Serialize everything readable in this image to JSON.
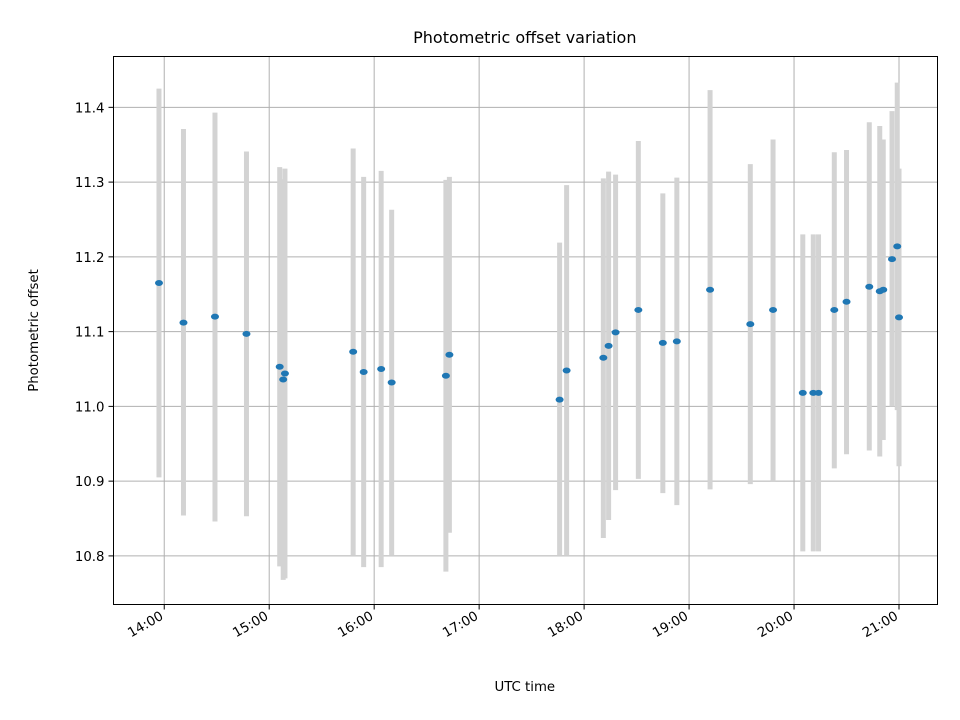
{
  "chart_data": {
    "type": "scatter",
    "title": "Photometric offset variation",
    "xlabel": "UTC time",
    "ylabel": "Photometric offset",
    "x_unit": "hours UTC",
    "xlim": [
      "13:31",
      "21:22"
    ],
    "ylim": [
      10.735,
      11.468
    ],
    "xticks": [
      "14:00",
      "15:00",
      "16:00",
      "17:00",
      "18:00",
      "19:00",
      "20:00",
      "21:00"
    ],
    "yticks": [
      "10.8",
      "10.9",
      "11.0",
      "11.1",
      "11.2",
      "11.3",
      "11.4"
    ],
    "grid": true,
    "colors": {
      "points": "#1f77b4",
      "errorbars": "#d3d3d3",
      "grid": "#b0b0b0"
    },
    "points": [
      {
        "x": "13:57",
        "y": 11.165,
        "ymin": 10.905,
        "ymax": 11.425
      },
      {
        "x": "14:11",
        "y": 11.112,
        "ymin": 10.854,
        "ymax": 11.371
      },
      {
        "x": "14:29",
        "y": 11.12,
        "ymin": 10.846,
        "ymax": 11.393
      },
      {
        "x": "14:47",
        "y": 11.097,
        "ymin": 10.853,
        "ymax": 11.341
      },
      {
        "x": "15:06",
        "y": 11.053,
        "ymin": 10.786,
        "ymax": 11.32
      },
      {
        "x": "15:08",
        "y": 11.036,
        "ymin": 10.768,
        "ymax": 11.304
      },
      {
        "x": "15:09",
        "y": 11.044,
        "ymin": 10.77,
        "ymax": 11.318
      },
      {
        "x": "15:48",
        "y": 11.073,
        "ymin": 10.8,
        "ymax": 11.345
      },
      {
        "x": "15:54",
        "y": 11.046,
        "ymin": 10.785,
        "ymax": 11.307
      },
      {
        "x": "16:04",
        "y": 11.05,
        "ymin": 10.785,
        "ymax": 11.315
      },
      {
        "x": "16:10",
        "y": 11.032,
        "ymin": 10.8,
        "ymax": 11.263
      },
      {
        "x": "16:41",
        "y": 11.041,
        "ymin": 10.779,
        "ymax": 11.303
      },
      {
        "x": "16:43",
        "y": 11.069,
        "ymin": 10.831,
        "ymax": 11.307
      },
      {
        "x": "17:46",
        "y": 11.009,
        "ymin": 10.8,
        "ymax": 11.219
      },
      {
        "x": "17:50",
        "y": 11.048,
        "ymin": 10.8,
        "ymax": 11.296
      },
      {
        "x": "18:11",
        "y": 11.065,
        "ymin": 10.824,
        "ymax": 11.305
      },
      {
        "x": "18:14",
        "y": 11.081,
        "ymin": 10.848,
        "ymax": 11.314
      },
      {
        "x": "18:18",
        "y": 11.099,
        "ymin": 10.888,
        "ymax": 11.31
      },
      {
        "x": "18:31",
        "y": 11.129,
        "ymin": 10.903,
        "ymax": 11.355
      },
      {
        "x": "18:45",
        "y": 11.085,
        "ymin": 10.884,
        "ymax": 11.285
      },
      {
        "x": "18:53",
        "y": 11.087,
        "ymin": 10.868,
        "ymax": 11.306
      },
      {
        "x": "19:12",
        "y": 11.156,
        "ymin": 10.889,
        "ymax": 11.423
      },
      {
        "x": "19:35",
        "y": 11.11,
        "ymin": 10.896,
        "ymax": 11.324
      },
      {
        "x": "19:48",
        "y": 11.129,
        "ymin": 10.9,
        "ymax": 11.357
      },
      {
        "x": "20:05",
        "y": 11.018,
        "ymin": 10.806,
        "ymax": 11.23
      },
      {
        "x": "20:11",
        "y": 11.018,
        "ymin": 10.806,
        "ymax": 11.23
      },
      {
        "x": "20:14",
        "y": 11.018,
        "ymin": 10.806,
        "ymax": 11.23
      },
      {
        "x": "20:23",
        "y": 11.129,
        "ymin": 10.917,
        "ymax": 11.34
      },
      {
        "x": "20:30",
        "y": 11.14,
        "ymin": 10.936,
        "ymax": 11.343
      },
      {
        "x": "20:43",
        "y": 11.16,
        "ymin": 10.941,
        "ymax": 11.38
      },
      {
        "x": "20:49",
        "y": 11.154,
        "ymin": 10.933,
        "ymax": 11.375
      },
      {
        "x": "20:51",
        "y": 11.156,
        "ymin": 10.955,
        "ymax": 11.357
      },
      {
        "x": "20:56",
        "y": 11.197,
        "ymin": 11.0,
        "ymax": 11.395
      },
      {
        "x": "20:59",
        "y": 11.214,
        "ymin": 10.995,
        "ymax": 11.433
      },
      {
        "x": "21:00",
        "y": 11.119,
        "ymin": 10.92,
        "ymax": 11.318
      }
    ]
  }
}
